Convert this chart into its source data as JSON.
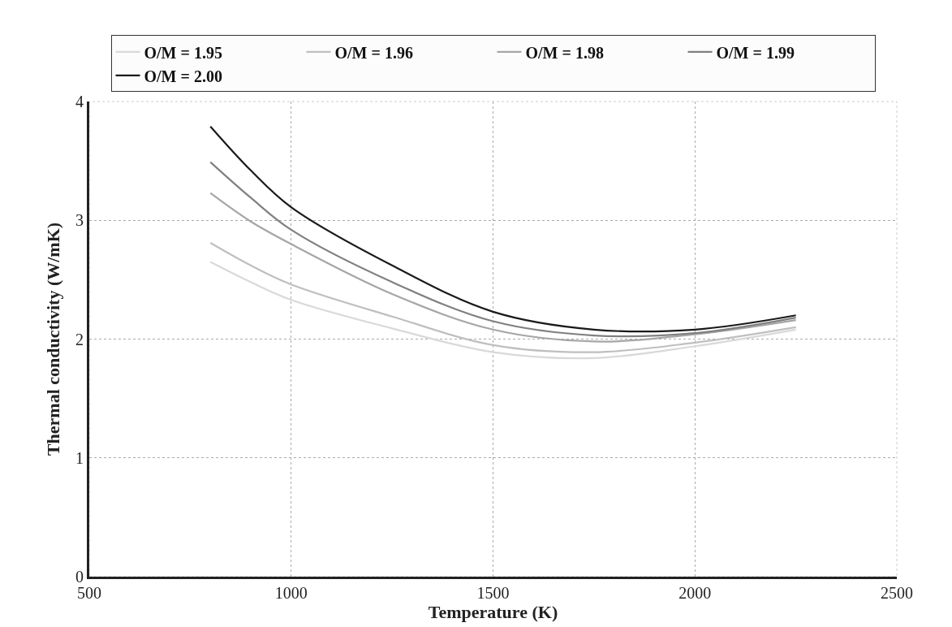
{
  "chart_data": {
    "type": "line",
    "xlabel": "Temperature (K)",
    "ylabel": "Thermal conductivity (W/mK)",
    "x": [
      800,
      900,
      1000,
      1250,
      1500,
      1750,
      2000,
      2250
    ],
    "series": [
      {
        "name": "O/M = 1.95",
        "color": "#d9d9d9",
        "values": [
          2.65,
          2.48,
          2.33,
          2.09,
          1.89,
          1.84,
          1.94,
          2.08
        ]
      },
      {
        "name": "O/M = 1.96",
        "color": "#bfbfbf",
        "values": [
          2.81,
          2.62,
          2.46,
          2.19,
          1.95,
          1.89,
          1.97,
          2.1
        ]
      },
      {
        "name": "O/M = 1.98",
        "color": "#a6a6a6",
        "values": [
          3.23,
          2.99,
          2.8,
          2.38,
          2.08,
          1.98,
          2.04,
          2.16
        ]
      },
      {
        "name": "O/M = 1.99",
        "color": "#808080",
        "values": [
          3.49,
          3.19,
          2.92,
          2.48,
          2.15,
          2.03,
          2.05,
          2.18
        ]
      },
      {
        "name": "O/M = 2.00",
        "color": "#1a1a1a",
        "values": [
          3.79,
          3.42,
          3.11,
          2.62,
          2.23,
          2.08,
          2.08,
          2.2
        ]
      }
    ],
    "xlim": [
      500,
      2500
    ],
    "xticks": [
      500,
      1000,
      1500,
      2000,
      2500
    ],
    "ylim": [
      0,
      4
    ],
    "yticks": [
      0,
      1,
      2,
      3,
      4
    ],
    "grid": true,
    "legend": "top",
    "marker": "none",
    "line_style": "solid"
  }
}
